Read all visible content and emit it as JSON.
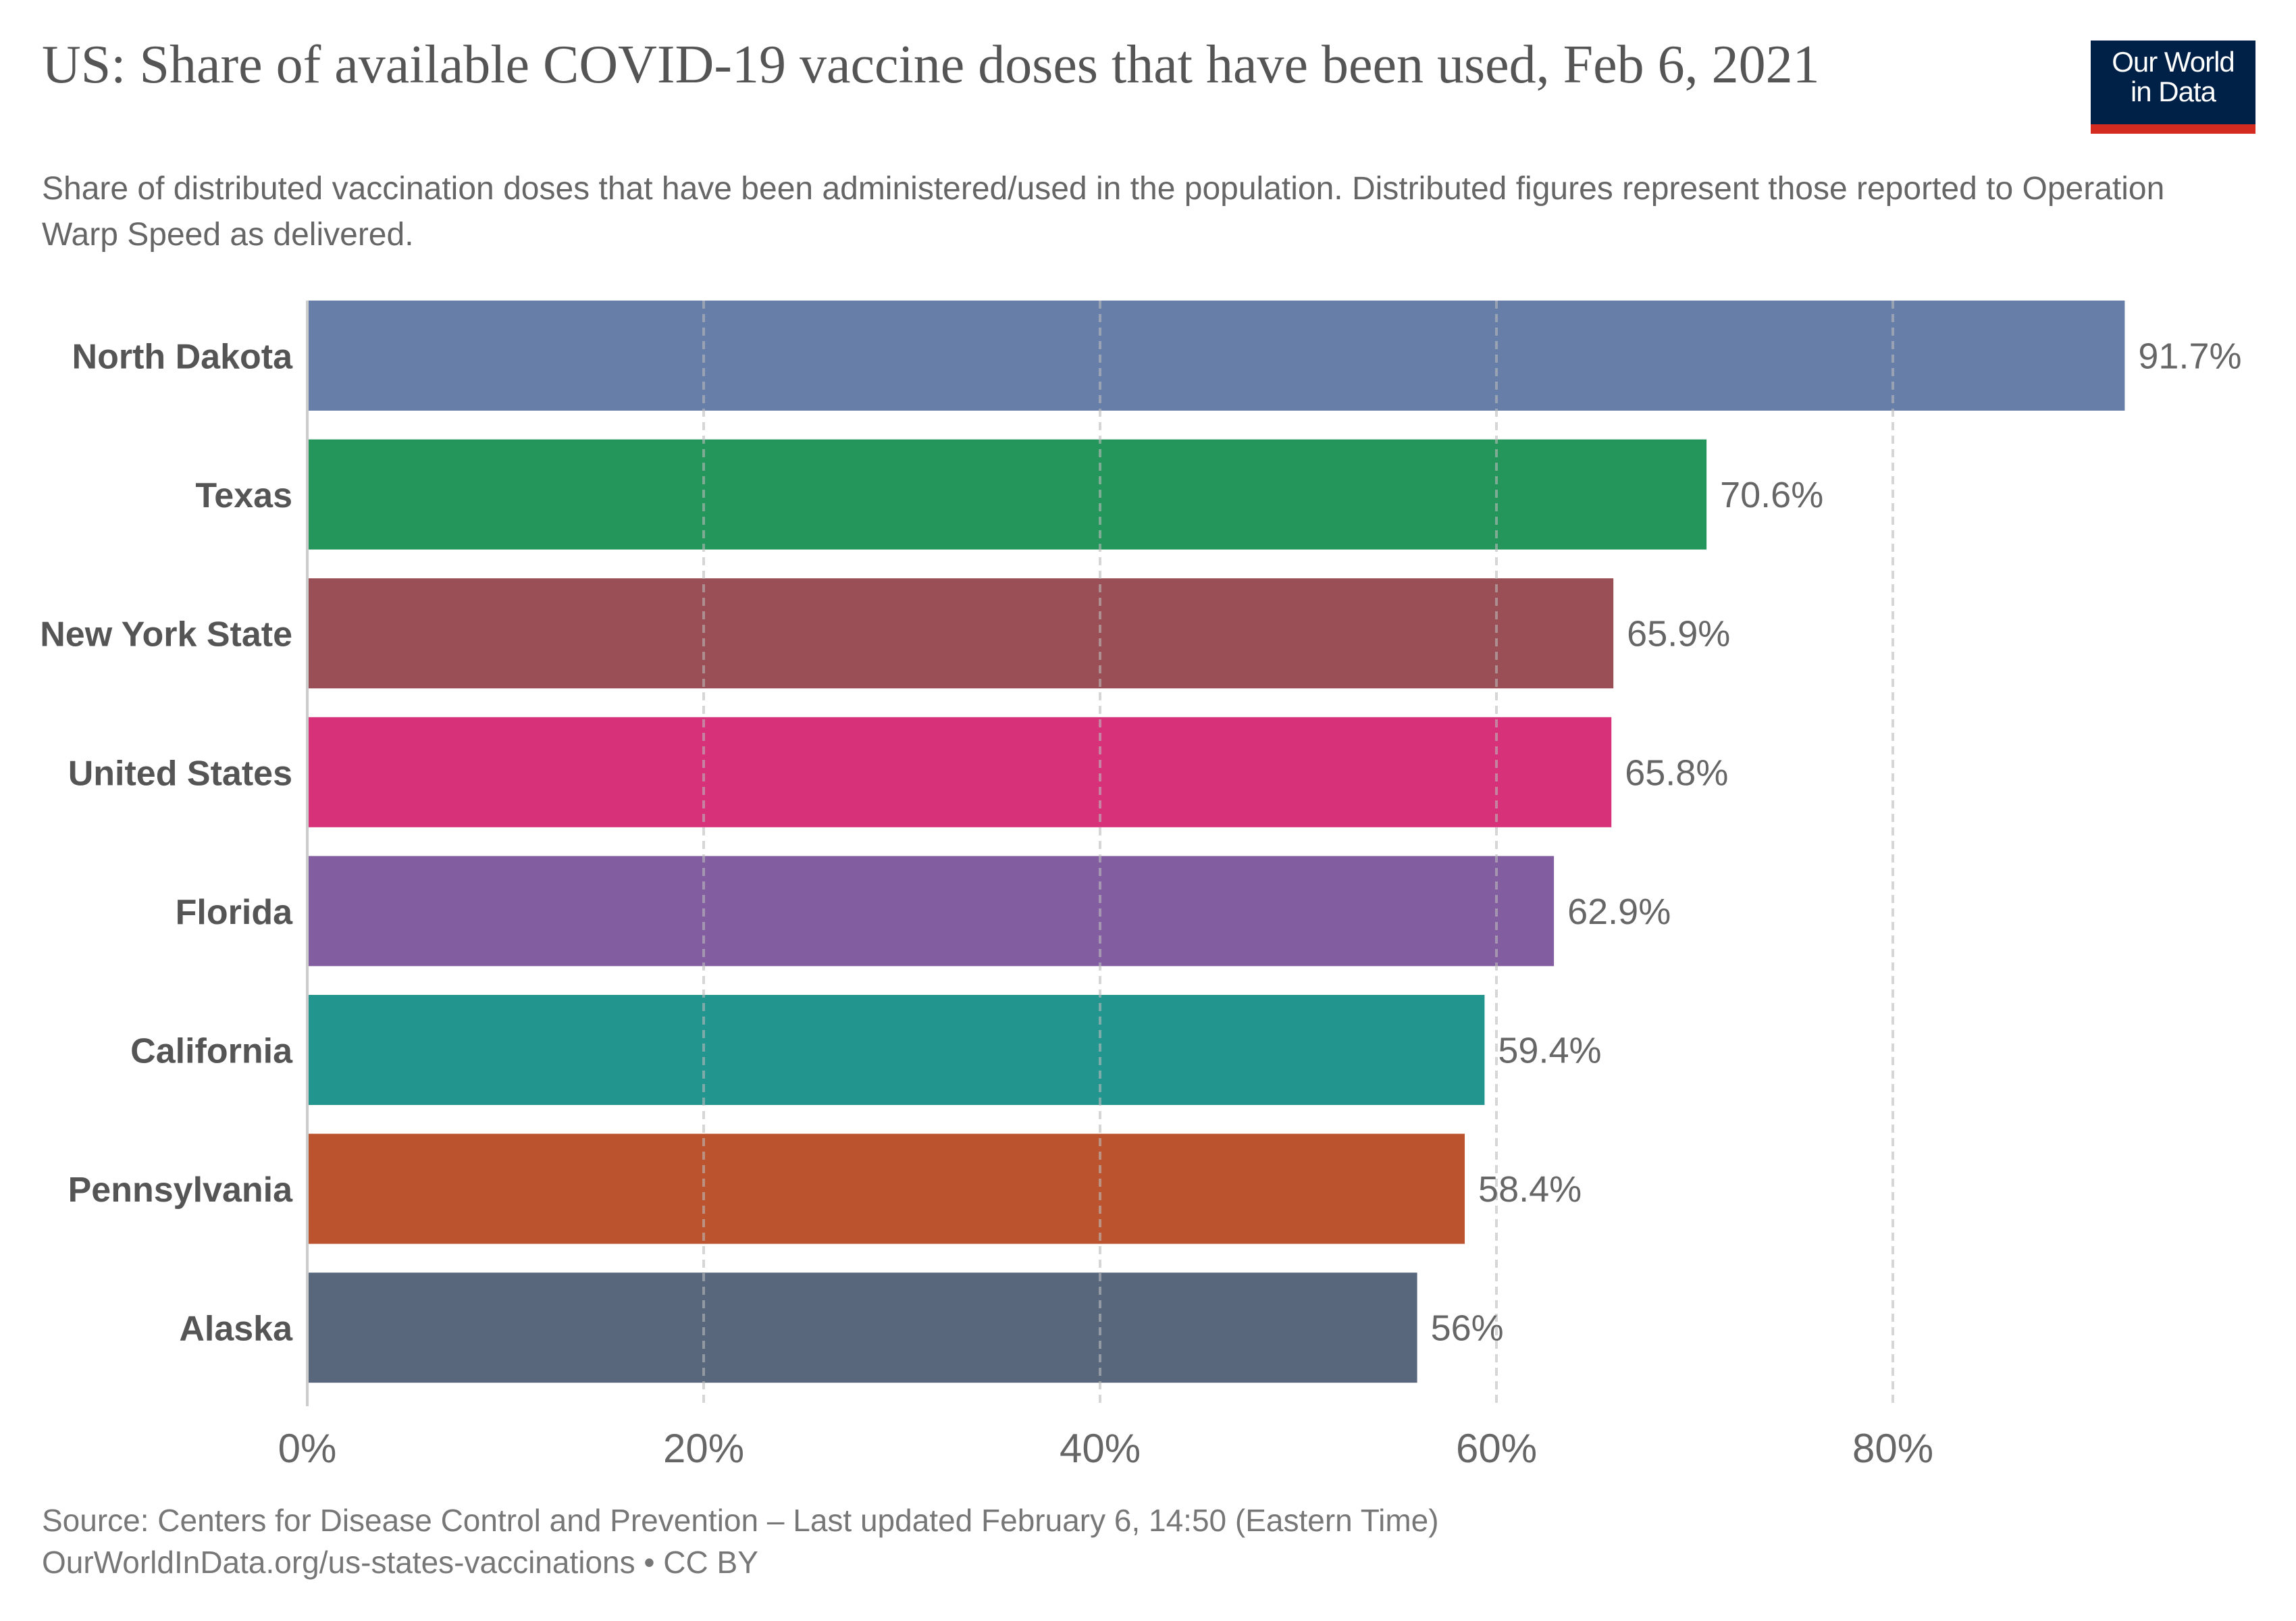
{
  "header": {
    "title": "US: Share of available COVID-19 vaccine doses that have been used, Feb 6, 2021",
    "subtitle": "Share of distributed vaccination doses that have been administered/used in the population. Distributed figures represent those reported to Operation Warp Speed as delivered."
  },
  "logo": {
    "line1": "Our World",
    "line2": "in Data",
    "bg_color": "#002147",
    "accent_color": "#d42b21"
  },
  "chart_data": {
    "type": "bar",
    "orientation": "horizontal",
    "title": "US: Share of available COVID-19 vaccine doses that have been used, Feb 6, 2021",
    "xlabel": "",
    "ylabel": "",
    "xlim": [
      0,
      100
    ],
    "grid": true,
    "tick_values": [
      0,
      20,
      40,
      60,
      80
    ],
    "tick_labels": [
      "0%",
      "20%",
      "40%",
      "60%",
      "80%"
    ],
    "categories": [
      "North Dakota",
      "Texas",
      "New York State",
      "United States",
      "Florida",
      "California",
      "Pennsylvania",
      "Alaska"
    ],
    "values": [
      91.7,
      70.6,
      65.9,
      65.8,
      62.9,
      59.4,
      58.4,
      56
    ],
    "value_labels": [
      "91.7%",
      "70.6%",
      "65.9%",
      "65.8%",
      "62.9%",
      "59.4%",
      "58.4%",
      "56%"
    ],
    "colors": [
      "#667ea8",
      "#24955b",
      "#9a4f56",
      "#d7317a",
      "#825da0",
      "#23958f",
      "#bb532e",
      "#59677d"
    ]
  },
  "footer": {
    "source": "Source: Centers for Disease Control and Prevention – Last updated February 6, 14:50 (Eastern Time)",
    "link": "OurWorldInData.org/us-states-vaccinations • CC BY"
  }
}
